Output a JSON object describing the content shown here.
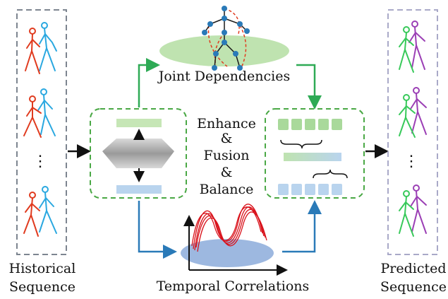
{
  "left": {
    "label_line1": "Historical",
    "label_line2": "Sequence",
    "ellipsis": "⋮"
  },
  "right": {
    "label_line1": "Predicted",
    "label_line2": "Sequence",
    "ellipsis": "⋮"
  },
  "top": {
    "label": "Joint Dependencies"
  },
  "bottom": {
    "label": "Temporal Correlations"
  },
  "center": {
    "line1": "Enhance",
    "line2": "&",
    "line3": "Fusion",
    "line4": "&",
    "line5": "Balance"
  },
  "colors": {
    "green": "#2eaa55",
    "blue": "#2a7ab8",
    "skeleton_red": "#e03b1f",
    "skeleton_cyan": "#2aa8e0",
    "skeleton_purple": "#9b3fb5",
    "skeleton_green": "#38c95a"
  }
}
